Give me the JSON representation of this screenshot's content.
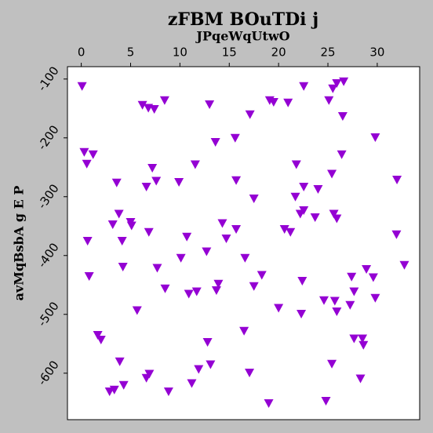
{
  "chart_data": {
    "type": "scatter",
    "title": "zFBM BOuTDi j",
    "x_label": "JPqeWqUtwO",
    "y_label": "avMqBsbA g E P",
    "x": [
      0.08,
      0.3,
      0.56,
      1.2,
      0.64,
      0.8,
      1.67,
      2.0,
      2.87,
      3.35,
      3.59,
      3.19,
      3.82,
      4.14,
      4.22,
      3.9,
      4.3,
      5.0,
      5.1,
      5.66,
      6.2,
      6.8,
      7.4,
      6.6,
      7.2,
      7.6,
      6.85,
      7.7,
      8.45,
      8.5,
      6.6,
      6.9,
      8.85,
      9.9,
      10.1,
      10.7,
      10.9,
      11.7,
      11.55,
      11.2,
      11.9,
      13.0,
      13.6,
      12.7,
      13.9,
      13.7,
      12.8,
      13.1,
      14.3,
      14.7,
      15.6,
      15.7,
      15.7,
      16.6,
      16.5,
      17.1,
      17.5,
      17.5,
      17.05,
      18.3,
      19.0,
      19.1,
      19.5,
      20.96,
      20.0,
      20.6,
      21.2,
      21.8,
      21.7,
      22.55,
      22.55,
      22.55,
      22.2,
      22.4,
      22.3,
      23.7,
      24.0,
      24.6,
      24.8,
      25.1,
      25.5,
      25.9,
      26.6,
      26.5,
      26.4,
      25.4,
      25.6,
      25.9,
      25.7,
      25.9,
      25.4,
      27.25,
      27.4,
      27.65,
      27.65,
      28.5,
      28.6,
      28.9,
      29.6,
      29.8,
      28.3,
      29.8,
      32.0,
      31.95,
      32.75
    ],
    "values": [
      -112,
      -224,
      -244,
      -228,
      -375,
      -435,
      -535,
      -543,
      -631,
      -628,
      -276,
      -347,
      -329,
      -375,
      -419,
      -580,
      -620,
      -343,
      -349,
      -493,
      -144,
      -149,
      -151,
      -283,
      -251,
      -273,
      -360,
      -421,
      -136,
      -456,
      -608,
      -601,
      -631,
      -275,
      -404,
      -368,
      -465,
      -461,
      -245,
      -617,
      -593,
      -143,
      -207,
      -393,
      -448,
      -459,
      -547,
      -585,
      -345,
      -371,
      -200,
      -272,
      -355,
      -404,
      -528,
      -160,
      -303,
      -452,
      -599,
      -433,
      -651,
      -136,
      -139,
      -140,
      -489,
      -355,
      -360,
      -245,
      -300,
      -112,
      -283,
      -323,
      -329,
      -443,
      -499,
      -335,
      -287,
      -476,
      -647,
      -136,
      -116,
      -107,
      -104,
      -163,
      -228,
      -261,
      -329,
      -337,
      -477,
      -495,
      -584,
      -484,
      -436,
      -461,
      -541,
      -541,
      -552,
      -423,
      -437,
      -472,
      -609,
      -199,
      -271,
      -364,
      -416
    ],
    "color": "#9400d3",
    "marker": "triangle-down",
    "x_axis_position": "top",
    "xlim": [
      -1.4,
      34.3
    ],
    "xticks": [
      0,
      5,
      10,
      15,
      20,
      25,
      30
    ],
    "ylim": [
      -679,
      -79
    ],
    "yticks": [
      -600,
      -500,
      -400,
      -300,
      -200,
      -100
    ]
  }
}
